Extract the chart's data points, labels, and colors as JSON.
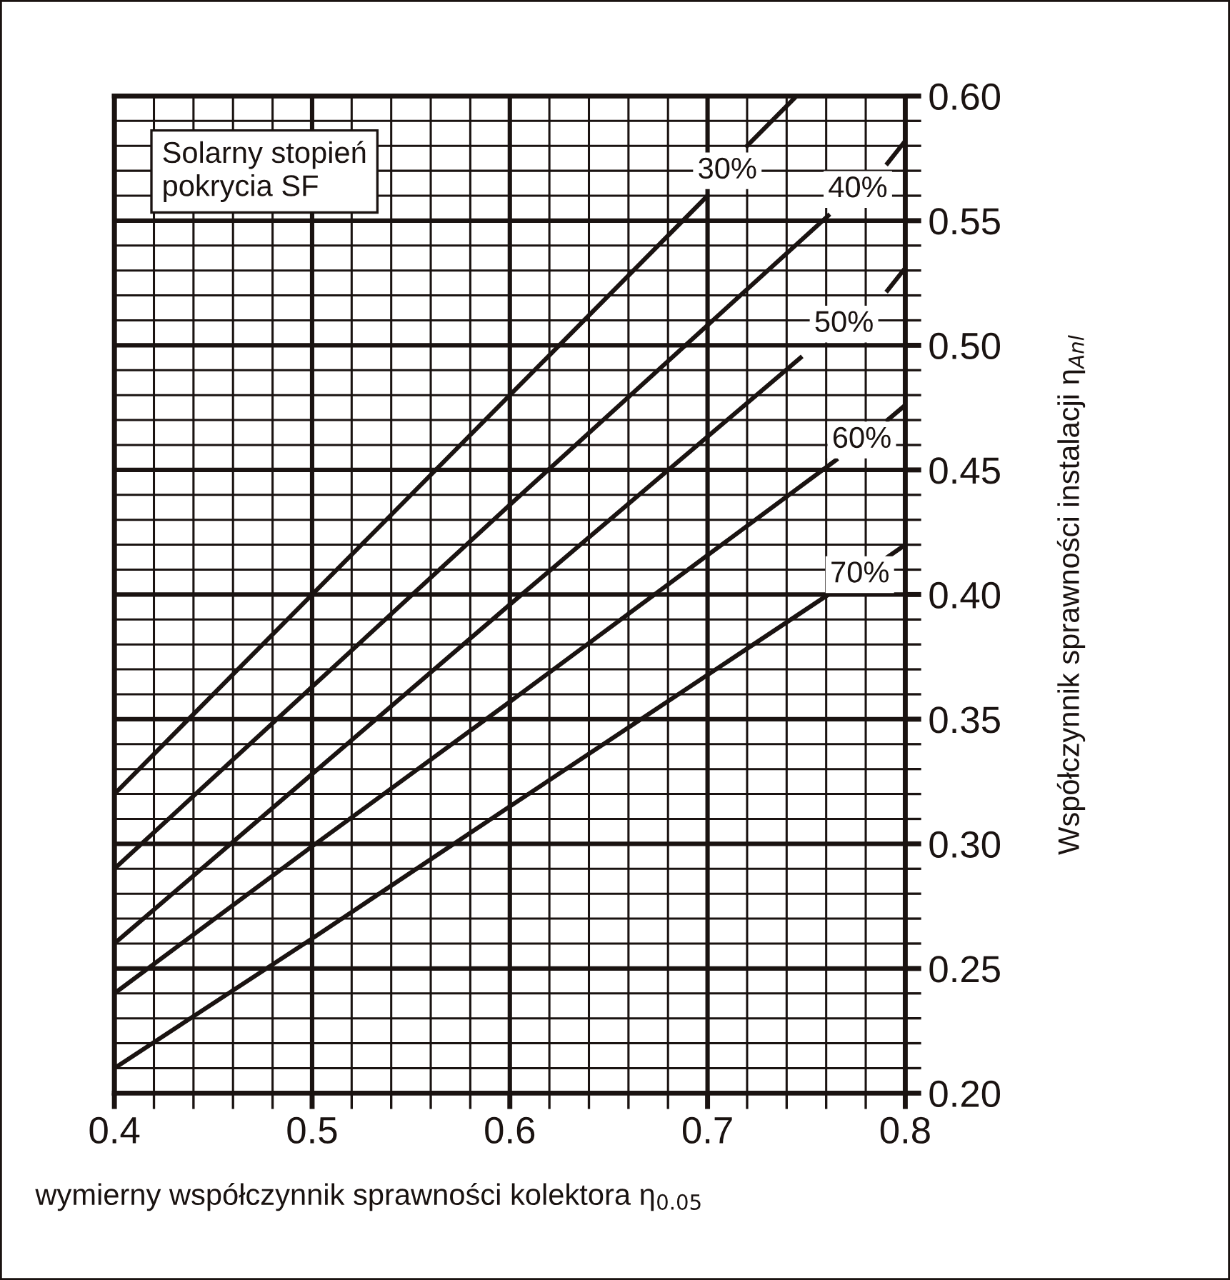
{
  "chart_data": {
    "type": "line",
    "xlabel": "wymierny współczynnik sprawności kolektora η$_{0.05}$",
    "ylabel": "Współczynnik sprawności instalacji η$_{Anl}$",
    "legend_title": "Solarny stopień\npokrycia SF",
    "series": [
      {
        "name": "30%",
        "color": "#1a1311",
        "x": [
          0.4,
          0.5,
          0.6,
          0.7,
          0.71,
          0.72,
          0.745
        ],
        "values": [
          0.32,
          0.4,
          0.48,
          0.56,
          null,
          0.58,
          0.6
        ]
      },
      {
        "name": "40%",
        "color": "#1a1311",
        "x": [
          0.4,
          0.5,
          0.6,
          0.761,
          0.775,
          0.791,
          0.8
        ],
        "values": [
          0.29,
          0.363,
          0.436,
          0.552,
          null,
          0.573,
          0.582
        ]
      },
      {
        "name": "50%",
        "color": "#1a1311",
        "x": [
          0.4,
          0.5,
          0.6,
          0.747,
          0.77,
          0.791,
          0.8
        ],
        "values": [
          0.26,
          0.328,
          0.396,
          0.495,
          null,
          0.522,
          0.531
        ]
      },
      {
        "name": "60%",
        "color": "#1a1311",
        "x": [
          0.4,
          0.5,
          0.6,
          0.765,
          0.78,
          0.791,
          0.8
        ],
        "values": [
          0.24,
          0.299,
          0.357,
          0.454,
          null,
          0.47,
          0.476
        ]
      },
      {
        "name": "70%",
        "color": "#1a1311",
        "x": [
          0.4,
          0.5,
          0.6,
          0.763,
          0.78,
          0.791,
          0.8
        ],
        "values": [
          0.21,
          0.262,
          0.315,
          0.401,
          null,
          0.415,
          0.42
        ]
      }
    ],
    "xlim": [
      0.4,
      0.8
    ],
    "xticks": [
      0.4,
      0.5,
      0.6,
      0.7,
      0.8
    ],
    "ylim": [
      0.2,
      0.6
    ],
    "yticks": [
      {
        "value": 0.2,
        "label": "0.20"
      },
      {
        "value": 0.25,
        "label": "0.25"
      },
      {
        "value": 0.3,
        "label": "0.30"
      },
      {
        "value": 0.35,
        "label": "0.35"
      },
      {
        "value": 0.4,
        "label": "0.40"
      },
      {
        "value": 0.45,
        "label": "0.45"
      },
      {
        "value": 0.5,
        "label": "0.50"
      },
      {
        "value": 0.55,
        "label": "0.55"
      },
      {
        "value": 0.6,
        "label": "0.60"
      }
    ],
    "grid": true,
    "legend": false,
    "marker": "none",
    "line_style": "solid"
  }
}
